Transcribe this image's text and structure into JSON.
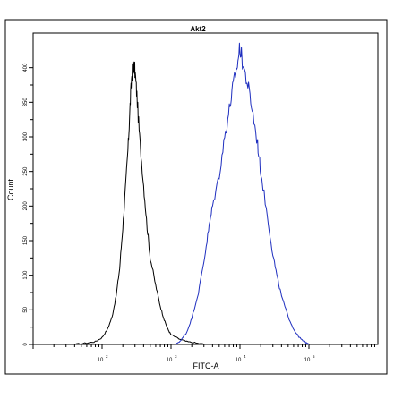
{
  "chart_data": {
    "type": "line",
    "title": "Akt2",
    "xlabel": "FITC-A",
    "ylabel": "Count",
    "x_scale": "log",
    "xlim": [
      10,
      1000000
    ],
    "ylim": [
      0,
      450
    ],
    "x_ticks": [
      {
        "value": 100,
        "base": "10",
        "exp": "2"
      },
      {
        "value": 1000,
        "base": "10",
        "exp": "3"
      },
      {
        "value": 10000,
        "base": "10",
        "exp": "4"
      },
      {
        "value": 100000,
        "base": "10",
        "exp": "5"
      }
    ],
    "y_ticks": [
      0,
      50,
      100,
      150,
      200,
      250,
      300,
      350,
      400
    ],
    "grid": false,
    "series": [
      {
        "color": "#000000",
        "points": [
          [
            40,
            0
          ],
          [
            60,
            2
          ],
          [
            80,
            4
          ],
          [
            100,
            10
          ],
          [
            120,
            22
          ],
          [
            140,
            40
          ],
          [
            160,
            70
          ],
          [
            180,
            110
          ],
          [
            200,
            170
          ],
          [
            220,
            230
          ],
          [
            240,
            290
          ],
          [
            255,
            345
          ],
          [
            270,
            390
          ],
          [
            285,
            405
          ],
          [
            300,
            395
          ],
          [
            320,
            360
          ],
          [
            350,
            300
          ],
          [
            400,
            230
          ],
          [
            450,
            170
          ],
          [
            500,
            125
          ],
          [
            600,
            85
          ],
          [
            700,
            55
          ],
          [
            800,
            35
          ],
          [
            900,
            22
          ],
          [
            1000,
            14
          ],
          [
            1300,
            8
          ],
          [
            1700,
            4
          ],
          [
            2300,
            2
          ],
          [
            3200,
            0
          ]
        ]
      },
      {
        "color": "#1f2fbf",
        "points": [
          [
            1150,
            0
          ],
          [
            1400,
            6
          ],
          [
            1700,
            18
          ],
          [
            2000,
            38
          ],
          [
            2500,
            75
          ],
          [
            3000,
            120
          ],
          [
            3500,
            165
          ],
          [
            4000,
            200
          ],
          [
            5000,
            245
          ],
          [
            6000,
            300
          ],
          [
            7000,
            340
          ],
          [
            8000,
            375
          ],
          [
            9000,
            400
          ],
          [
            10000,
            430
          ],
          [
            11000,
            405
          ],
          [
            13000,
            375
          ],
          [
            15000,
            340
          ],
          [
            18000,
            290
          ],
          [
            20000,
            250
          ],
          [
            25000,
            185
          ],
          [
            30000,
            130
          ],
          [
            35000,
            95
          ],
          [
            40000,
            70
          ],
          [
            50000,
            40
          ],
          [
            60000,
            22
          ],
          [
            70000,
            12
          ],
          [
            80000,
            6
          ],
          [
            90000,
            3
          ],
          [
            100000,
            0
          ]
        ]
      }
    ]
  }
}
